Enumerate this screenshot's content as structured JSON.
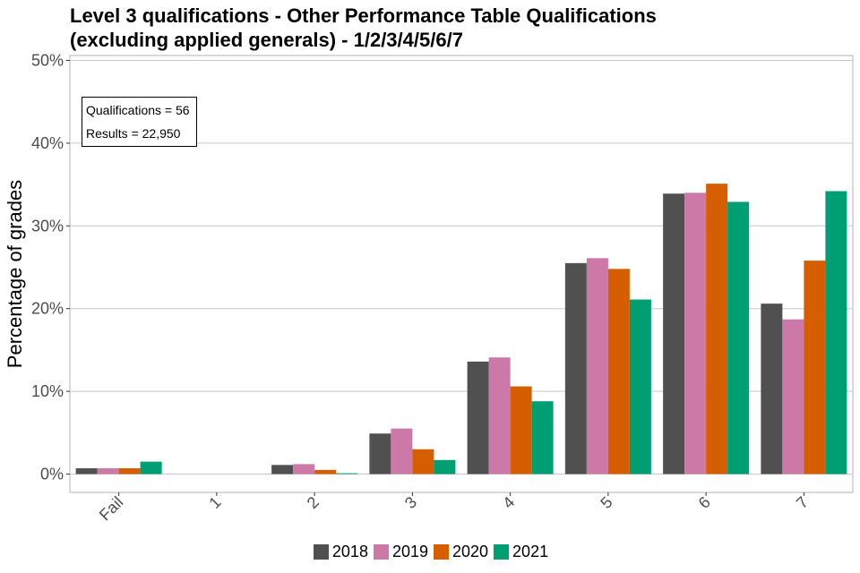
{
  "title_line1": "Level 3 qualifications  - Other Performance Table Qualifications",
  "title_line2": "(excluding applied generals) - 1/2/3/4/5/6/7",
  "annotation": {
    "qualifications": "Qualifications = 56",
    "results": "Results = 22,950"
  },
  "chart_data": {
    "type": "bar",
    "title": "Level 3 qualifications  - Other Performance Table Qualifications (excluding applied generals) - 1/2/3/4/5/6/7",
    "xlabel": "",
    "ylabel": "Percentage of grades",
    "categories": [
      "Fail",
      "1",
      "2",
      "3",
      "4",
      "5",
      "6",
      "7"
    ],
    "y_ticks": [
      "0%",
      "10%",
      "20%",
      "30%",
      "40%",
      "50%"
    ],
    "ylim": [
      0,
      50
    ],
    "grid": true,
    "legend_position": "bottom",
    "series": [
      {
        "name": "2018",
        "color": "#505050",
        "values": [
          0.7,
          0,
          1.1,
          4.9,
          13.6,
          25.5,
          33.9,
          20.6
        ]
      },
      {
        "name": "2019",
        "color": "#cc79a7",
        "values": [
          0.7,
          0,
          1.2,
          5.5,
          14.1,
          26.1,
          34.0,
          18.7
        ]
      },
      {
        "name": "2020",
        "color": "#d55e00",
        "values": [
          0.7,
          0,
          0.5,
          3.0,
          10.6,
          24.8,
          35.1,
          25.8
        ]
      },
      {
        "name": "2021",
        "color": "#009e73",
        "values": [
          1.5,
          0,
          0.1,
          1.7,
          8.8,
          21.1,
          32.9,
          34.2
        ]
      }
    ]
  }
}
